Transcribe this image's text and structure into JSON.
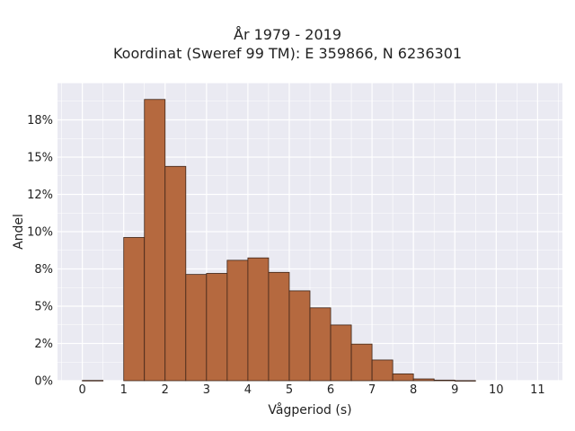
{
  "chart_data": {
    "type": "bar",
    "title_line1": "År 1979 - 2019",
    "title_line2": "Koordinat (Sweref 99 TM): E 359866, N 6236301",
    "xlabel": "Vågperiod (s)",
    "ylabel": "Andel",
    "bin_width": 0.5,
    "bins": [
      {
        "start": 0.0,
        "value": 0.0002
      },
      {
        "start": 0.5,
        "value": 0.0
      },
      {
        "start": 1.0,
        "value": 0.0961
      },
      {
        "start": 1.5,
        "value": 0.1887
      },
      {
        "start": 2.0,
        "value": 0.1438
      },
      {
        "start": 2.5,
        "value": 0.0713
      },
      {
        "start": 3.0,
        "value": 0.072
      },
      {
        "start": 3.5,
        "value": 0.0808
      },
      {
        "start": 4.0,
        "value": 0.0824
      },
      {
        "start": 4.5,
        "value": 0.0727
      },
      {
        "start": 5.0,
        "value": 0.0603
      },
      {
        "start": 5.5,
        "value": 0.0489
      },
      {
        "start": 6.0,
        "value": 0.0374
      },
      {
        "start": 6.5,
        "value": 0.0246
      },
      {
        "start": 7.0,
        "value": 0.0139
      },
      {
        "start": 7.5,
        "value": 0.0046
      },
      {
        "start": 8.0,
        "value": 0.0012
      },
      {
        "start": 8.5,
        "value": 0.0004
      },
      {
        "start": 9.0,
        "value": 0.0001
      }
    ],
    "xlim": [
      -0.6,
      11.6
    ],
    "ylim": [
      0,
      0.2
    ],
    "x_ticks": [
      {
        "value": 0,
        "label": "0"
      },
      {
        "value": 1,
        "label": "1"
      },
      {
        "value": 2,
        "label": "2"
      },
      {
        "value": 3,
        "label": "3"
      },
      {
        "value": 4,
        "label": "4"
      },
      {
        "value": 5,
        "label": "5"
      },
      {
        "value": 6,
        "label": "6"
      },
      {
        "value": 7,
        "label": "7"
      },
      {
        "value": 8,
        "label": "8"
      },
      {
        "value": 9,
        "label": "9"
      },
      {
        "value": 10,
        "label": "10"
      },
      {
        "value": 11,
        "label": "11"
      }
    ],
    "y_ticks": [
      {
        "value": 0,
        "label": "0%"
      },
      {
        "value": 0.025,
        "label": "2%"
      },
      {
        "value": 0.05,
        "label": "5%"
      },
      {
        "value": 0.075,
        "label": "8%"
      },
      {
        "value": 0.1,
        "label": "10%"
      },
      {
        "value": 0.125,
        "label": "12%"
      },
      {
        "value": 0.15,
        "label": "15%"
      },
      {
        "value": 0.175,
        "label": "18%"
      }
    ],
    "grid": true,
    "colors": {
      "bar_fill": "#b5693f",
      "bar_edge": "#3d2418",
      "plot_bg": "#eaeaf2",
      "grid": "#ffffff"
    }
  }
}
